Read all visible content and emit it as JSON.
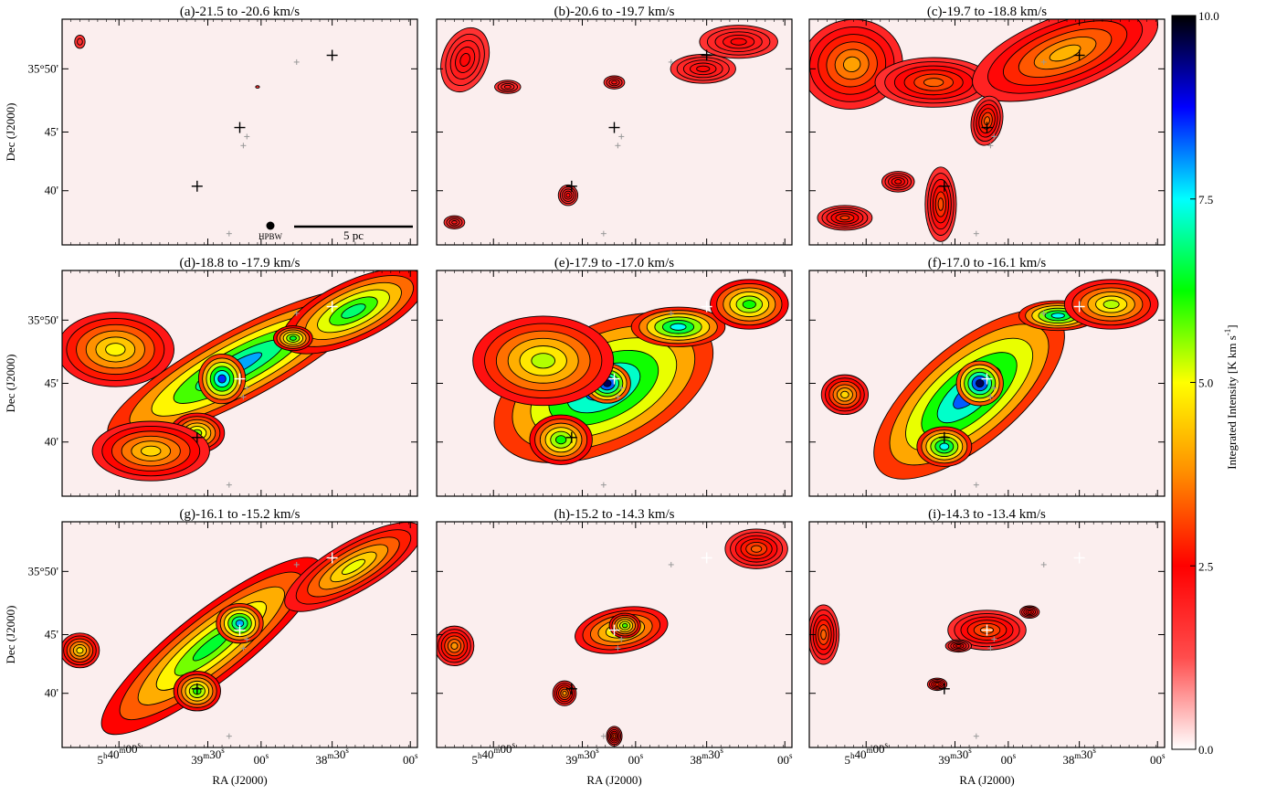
{
  "figure": {
    "ra_axis_label": "RA (J2000)",
    "dec_axis_label": "Dec (J2000)",
    "ra_ticks": [
      {
        "h": "5",
        "m": "40",
        "s": "00",
        "sec_only": false
      },
      {
        "h": "",
        "m": "39",
        "s": "30",
        "sec_only": false
      },
      {
        "h": "",
        "m": "",
        "s": "00",
        "sec_only": true
      },
      {
        "h": "",
        "m": "38",
        "s": "30",
        "sec_only": false
      },
      {
        "h": "",
        "m": "",
        "s": "00",
        "sec_only": true
      }
    ],
    "dec_ticks": [
      "35°50'",
      "45'",
      "40'"
    ],
    "scalebar_label": "5 pc",
    "beam_label": "HPBW",
    "colorbar": {
      "label": "Integrated Intensity [K km s",
      "label_sup": "-1",
      "label_end": "]",
      "min": 0.0,
      "max": 10.0,
      "tick_labels": [
        "10.0",
        "7.5",
        "5.0",
        "2.5",
        "0.0"
      ],
      "colormap": [
        "#ffffff",
        "#ff4d4d",
        "#ff0000",
        "#ff8c00",
        "#ffff00",
        "#00ff00",
        "#00ffff",
        "#0000ff",
        "#000000"
      ]
    }
  },
  "chart_data": {
    "type": "heatmap",
    "description_units": "integrated intensity in K km/s",
    "panels": [
      {
        "title": "(a)-21.5 to -20.6 km/s",
        "vmin": -21.5,
        "vmax": -20.6,
        "peak": 1.5
      },
      {
        "title": "(b)-20.6 to -19.7 km/s",
        "vmin": -20.6,
        "vmax": -19.7,
        "peak": 2.5
      },
      {
        "title": "(c)-19.7 to -18.8 km/s",
        "vmin": -19.7,
        "vmax": -18.8,
        "peak": 4.5
      },
      {
        "title": "(d)-18.8 to -17.9 km/s",
        "vmin": -18.8,
        "vmax": -17.9,
        "peak": 8.5
      },
      {
        "title": "(e)-17.9 to -17.0 km/s",
        "vmin": -17.9,
        "vmax": -17.0,
        "peak": 9.5
      },
      {
        "title": "(f)-17.0 to -16.1 km/s",
        "vmin": -17.0,
        "vmax": -16.1,
        "peak": 9.5
      },
      {
        "title": "(g)-16.1 to -15.2 km/s",
        "vmin": -16.1,
        "vmax": -15.2,
        "peak": 8.0
      },
      {
        "title": "(h)-15.2 to -14.3 km/s",
        "vmin": -15.2,
        "vmax": -14.3,
        "peak": 6.0
      },
      {
        "title": "(i)-14.3 to -13.4 km/s",
        "vmin": -14.3,
        "vmax": -13.4,
        "peak": 4.5
      }
    ]
  }
}
